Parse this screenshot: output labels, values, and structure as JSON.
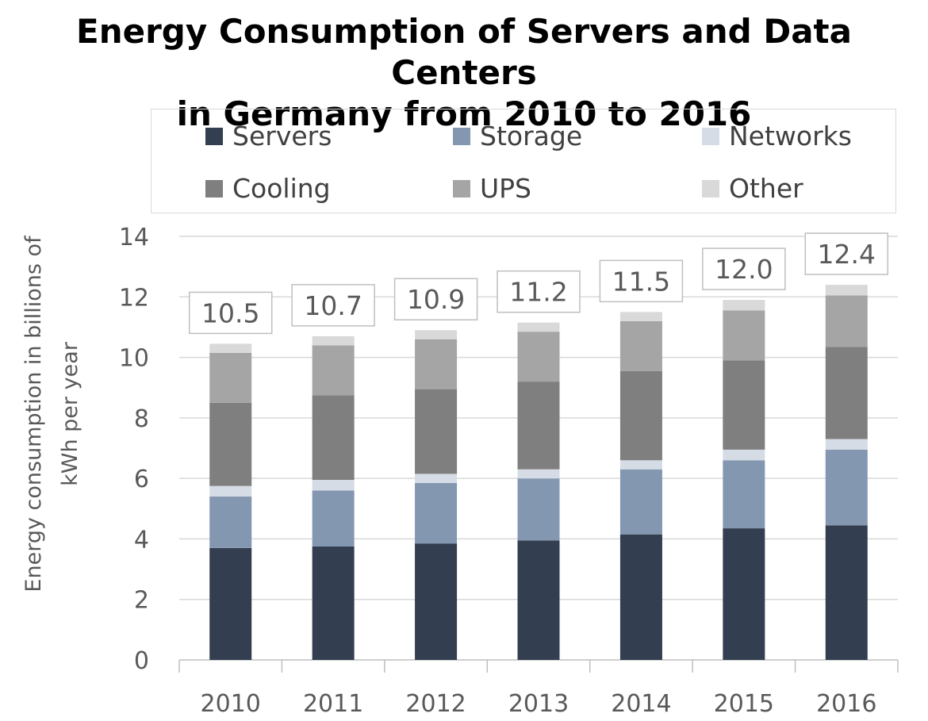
{
  "chart_data": {
    "type": "bar",
    "stacked": true,
    "title": [
      "Energy Consumption of Servers and Data Centers",
      "in Germany from 2010 to 2016"
    ],
    "ylabel": [
      "Energy consumption in billions of",
      "kWh per year"
    ],
    "xlabel": "",
    "categories": [
      "2010",
      "2011",
      "2012",
      "2013",
      "2014",
      "2015",
      "2016"
    ],
    "ylim": [
      0,
      14
    ],
    "yticks": [
      0,
      2,
      4,
      6,
      8,
      10,
      12,
      14
    ],
    "grid": true,
    "legend_position": "top",
    "series": [
      {
        "name": "Servers",
        "color": "#333f50",
        "values": [
          3.7,
          3.75,
          3.85,
          3.95,
          4.15,
          4.35,
          4.45
        ]
      },
      {
        "name": "Storage",
        "color": "#8497b0",
        "values": [
          1.7,
          1.85,
          2.0,
          2.05,
          2.15,
          2.25,
          2.5
        ]
      },
      {
        "name": "Networks",
        "color": "#d6dce5",
        "values": [
          0.35,
          0.35,
          0.3,
          0.3,
          0.3,
          0.35,
          0.35
        ]
      },
      {
        "name": "Cooling",
        "color": "#7f7f7f",
        "values": [
          2.75,
          2.8,
          2.8,
          2.9,
          2.95,
          2.95,
          3.05
        ]
      },
      {
        "name": "UPS",
        "color": "#a5a5a5",
        "values": [
          1.65,
          1.65,
          1.65,
          1.65,
          1.65,
          1.65,
          1.7
        ]
      },
      {
        "name": "Other",
        "color": "#d9d9d9",
        "values": [
          0.3,
          0.3,
          0.3,
          0.3,
          0.3,
          0.35,
          0.35
        ]
      }
    ],
    "totals": [
      "10.5",
      "10.7",
      "10.9",
      "11.2",
      "11.5",
      "12.0",
      "12.4"
    ]
  }
}
